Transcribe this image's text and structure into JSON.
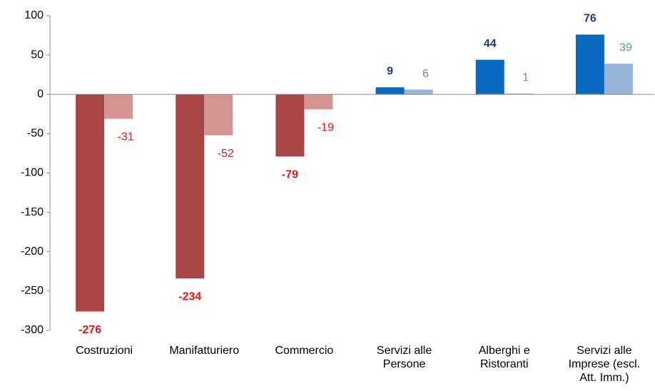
{
  "chart_data": {
    "type": "bar",
    "categories": [
      "Costruzioni",
      "Manifatturiero",
      "Commercio",
      "Servizi alle Persone",
      "Alberghi e Ristoranti",
      "Servizi alle Imprese (escl. Att. Imm.)"
    ],
    "series": [
      {
        "values": [
          -276,
          -234,
          -79,
          9,
          44,
          76
        ],
        "negative_color": "#a84646",
        "positive_color": "#0a6ac2",
        "negative_label_color": "#e8141a",
        "positive_label_color": "#1f3d78",
        "label_bold": true
      },
      {
        "values": [
          -31,
          -52,
          -19,
          6,
          1,
          39
        ],
        "negative_color": "#d49494",
        "positive_color": "#96b3d9",
        "negative_label_color": "#e8141a",
        "positive_label_color": "#5f8cc6",
        "label_bold": false
      }
    ],
    "ylim": [
      -300,
      100
    ],
    "yticks": [
      -300,
      -250,
      -200,
      -150,
      -100,
      -50,
      0,
      50,
      100
    ],
    "grid": false
  }
}
